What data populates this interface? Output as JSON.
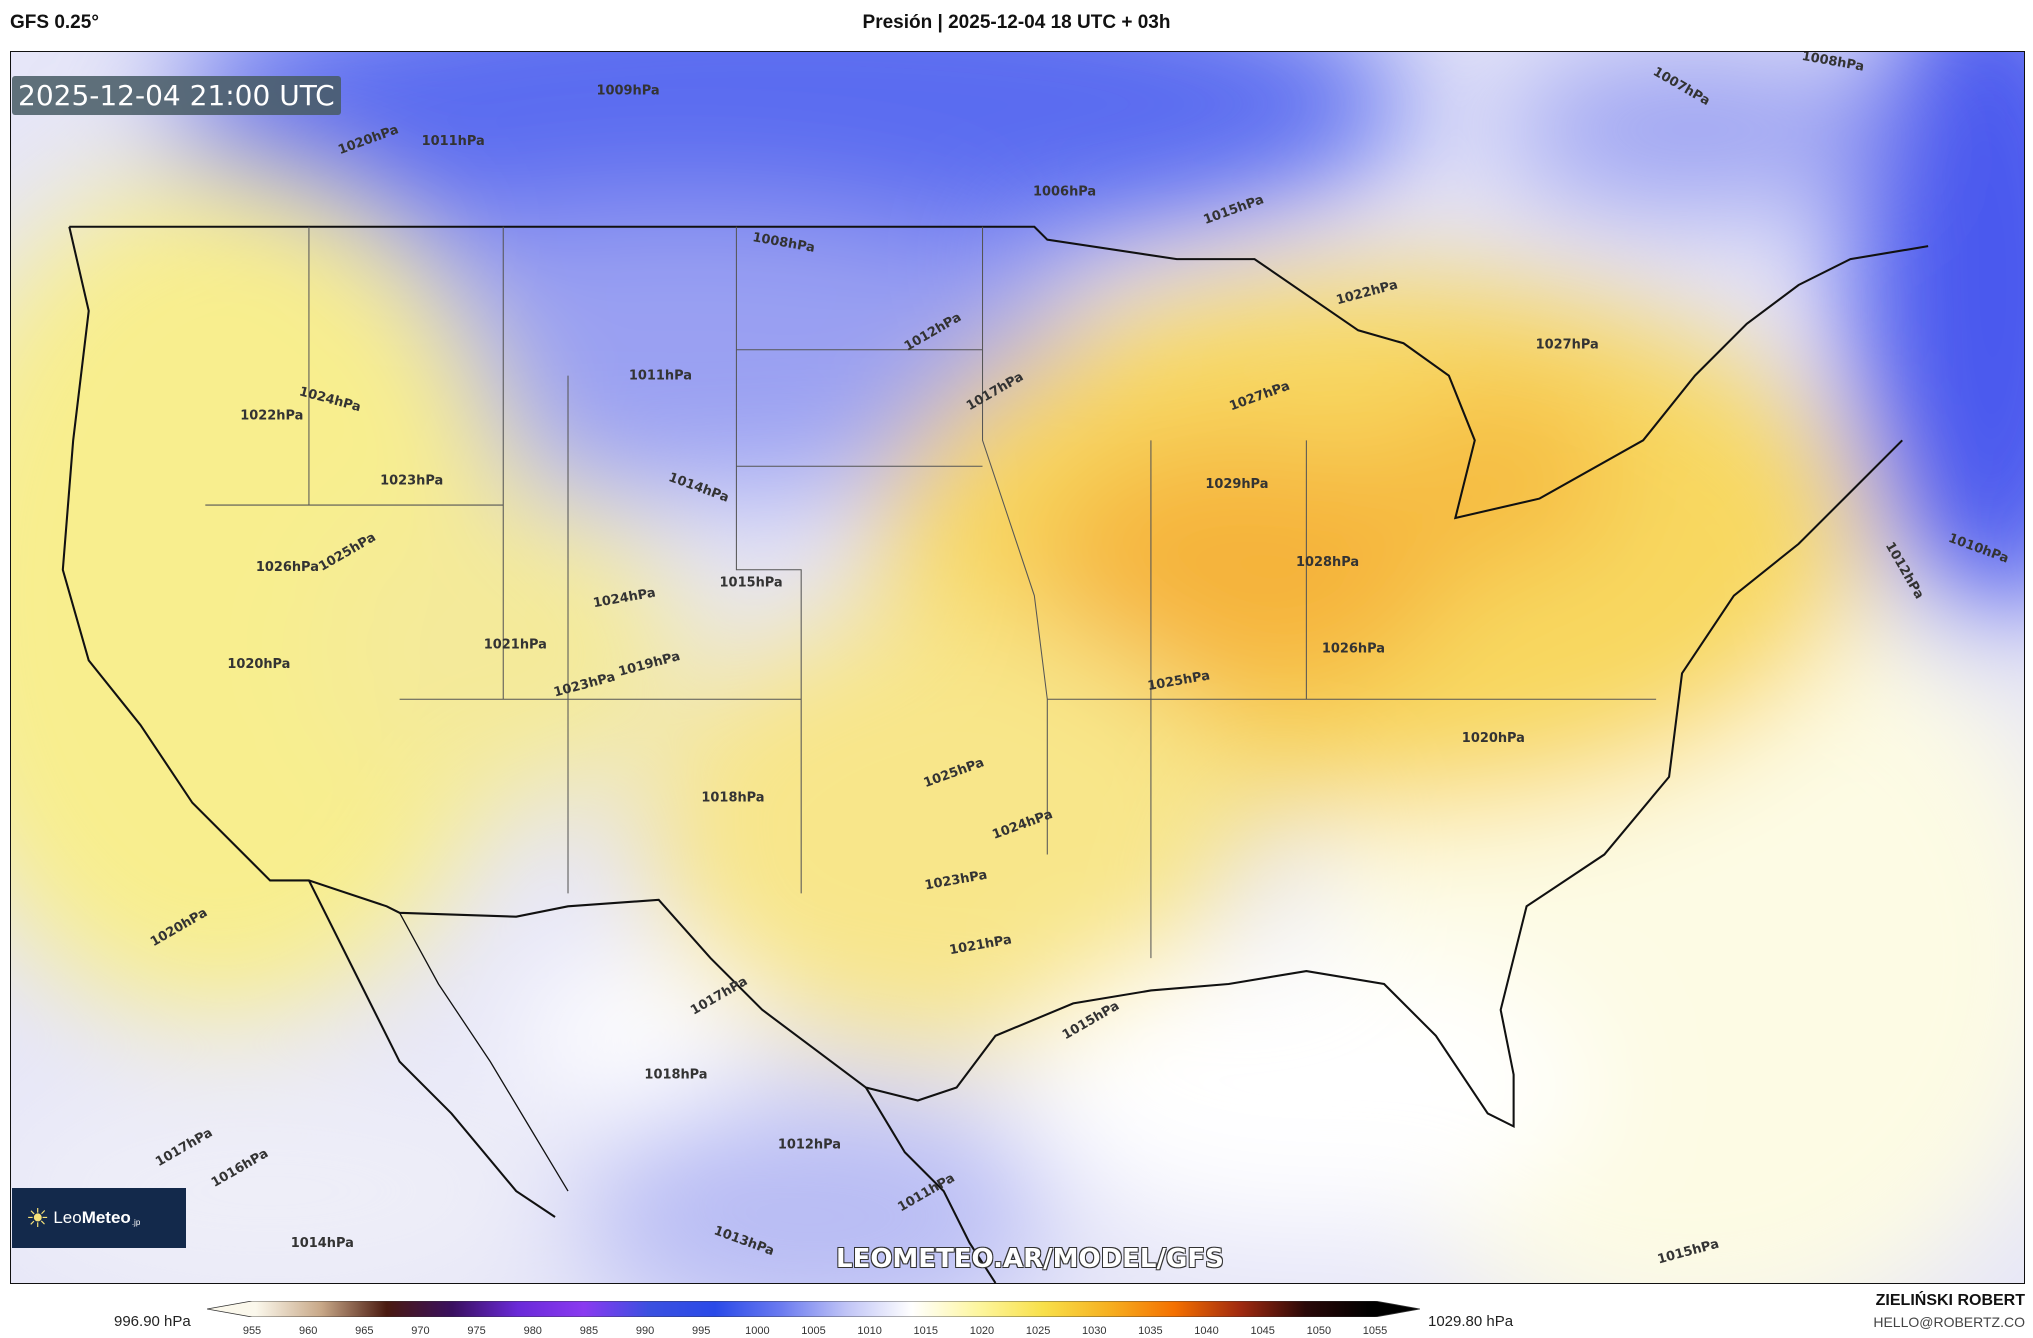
{
  "header": {
    "model": "GFS 0.25°",
    "title": "Presión | 2025-12-04 18 UTC + 03h"
  },
  "map": {
    "valid_time": "2025-12-04 21:00 UTC",
    "watermark_url": "LEOMETEO.AR/MODEL/GFS",
    "logo_text": {
      "part1": "Leo",
      "part2": "Meteo",
      "suffix": ".jp"
    },
    "isobar_labels": [
      "1009hPa",
      "1011hPa",
      "1020hPa",
      "1006hPa",
      "1008hPa",
      "1015hPa",
      "1022hPa",
      "1027hPa",
      "1012hPa",
      "1011hPa",
      "1024hPa",
      "1022hPa",
      "1017hPa",
      "1027hPa",
      "1029hPa",
      "1023hPa",
      "1014hPa",
      "1028hPa",
      "1026hPa",
      "1025hPa",
      "1015hPa",
      "1024hPa",
      "1021hPa",
      "1026hPa",
      "1020hPa",
      "1019hPa",
      "1023hPa",
      "1025hPa",
      "1020hPa",
      "1025hPa",
      "1018hPa",
      "1024hPa",
      "1023hPa",
      "1021hPa",
      "1020hPa",
      "1017hPa",
      "1015hPa",
      "1018hPa",
      "1012hPa",
      "1016hPa",
      "1017hPa",
      "1014hPa",
      "1011hPa",
      "1010hPa",
      "1012hPa",
      "1007hPa",
      "1008hPa",
      "1015hPa",
      "1013hPa"
    ]
  },
  "colorbar": {
    "min_label": "996.90 hPa",
    "max_label": "1029.80 hPa",
    "ticks": [
      "955",
      "960",
      "965",
      "970",
      "975",
      "980",
      "985",
      "990",
      "995",
      "1000",
      "1005",
      "1010",
      "1015",
      "1020",
      "1025",
      "1030",
      "1035",
      "1040",
      "1045",
      "1050",
      "1055"
    ],
    "colors": [
      "#fbf8ec",
      "#c8a888",
      "#4a1a10",
      "#3a1060",
      "#6a2ad8",
      "#8a3af0",
      "#3a50e0",
      "#2a4ae8",
      "#6a7af0",
      "#c0c4f6",
      "#ffffff",
      "#fdf6a0",
      "#f8e04a",
      "#f6b020",
      "#f47000",
      "#a02a10",
      "#2a0808",
      "#000000"
    ]
  },
  "credits": {
    "author": "ZIELIŃSKI ROBERT",
    "email": "HELLO@ROBERTZ.CO"
  }
}
